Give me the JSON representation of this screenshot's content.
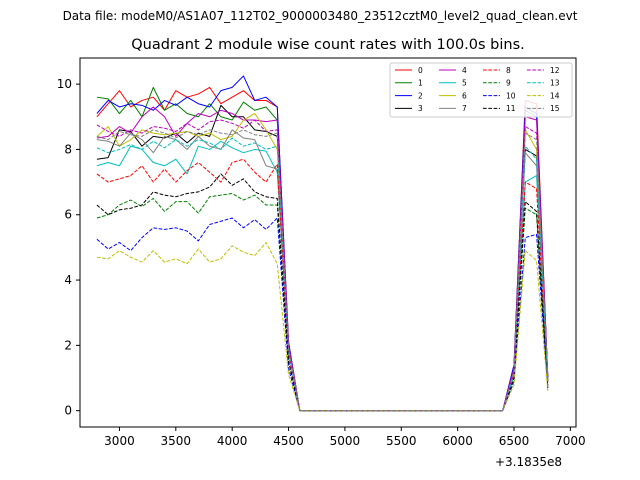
{
  "header": {
    "suptitle": "Data file: modeM0/AS1A07_112T02_9000003480_23512cztM0_level2_quad_clean.evt"
  },
  "chart_data": {
    "type": "line",
    "title": "Quadrant 2 module wise count rates with 100.0s bins.",
    "xlabel": "",
    "ylabel": "",
    "x_offset_label": "+3.1835e8",
    "xlim": [
      2650,
      7050
    ],
    "ylim": [
      -0.5,
      10.8
    ],
    "xticks": [
      3000,
      3500,
      4000,
      4500,
      5000,
      5500,
      6000,
      6500,
      7000
    ],
    "yticks": [
      0,
      2,
      4,
      6,
      8,
      10
    ],
    "grid": false,
    "legend_position": "top-right",
    "x": [
      2800,
      2900,
      3000,
      3100,
      3200,
      3300,
      3400,
      3500,
      3600,
      3700,
      3800,
      3900,
      4000,
      4100,
      4200,
      4300,
      4400,
      4500,
      4600,
      4700,
      4800,
      4900,
      5000,
      5100,
      5200,
      5300,
      5400,
      5500,
      5600,
      5700,
      5800,
      5900,
      6000,
      6100,
      6200,
      6300,
      6400,
      6500,
      6600,
      6700,
      6800
    ],
    "series": [
      {
        "name": "0",
        "color": "#ff0000",
        "dash": "solid",
        "values": [
          9.0,
          9.4,
          9.8,
          9.3,
          9.5,
          9.6,
          9.2,
          9.8,
          9.6,
          9.7,
          9.9,
          9.4,
          9.6,
          9.8,
          9.5,
          9.5,
          9.3,
          2.1,
          0.0,
          0,
          0,
          0,
          0,
          0,
          0,
          0,
          0,
          0,
          0,
          0,
          0,
          0,
          0,
          0,
          0,
          0,
          0,
          1.4,
          9.5,
          9.4,
          1.0
        ]
      },
      {
        "name": "1",
        "color": "#008000",
        "dash": "solid",
        "values": [
          9.6,
          9.55,
          9.1,
          9.5,
          9.0,
          9.9,
          9.2,
          9.4,
          9.1,
          9.0,
          9.4,
          9.0,
          8.9,
          9.45,
          9.2,
          9.3,
          8.9,
          2.0,
          0.0,
          0,
          0,
          0,
          0,
          0,
          0,
          0,
          0,
          0,
          0,
          0,
          0,
          0,
          0,
          0,
          0,
          0,
          0,
          1.3,
          9.2,
          9.0,
          1.0
        ]
      },
      {
        "name": "2",
        "color": "#0000ff",
        "dash": "solid",
        "values": [
          9.1,
          9.5,
          9.3,
          9.4,
          9.35,
          9.2,
          9.5,
          9.35,
          9.6,
          9.4,
          9.3,
          9.8,
          9.9,
          10.25,
          9.5,
          9.6,
          9.3,
          2.1,
          0.0,
          0,
          0,
          0,
          0,
          0,
          0,
          0,
          0,
          0,
          0,
          0,
          0,
          0,
          0,
          0,
          0,
          0,
          0,
          1.4,
          9.3,
          9.1,
          1.0
        ]
      },
      {
        "name": "3",
        "color": "#000000",
        "dash": "solid",
        "values": [
          7.7,
          7.75,
          8.6,
          8.55,
          8.1,
          8.4,
          8.35,
          8.5,
          8.2,
          8.5,
          8.4,
          9.35,
          9.0,
          9.0,
          8.6,
          8.55,
          8.4,
          1.9,
          0.0,
          0,
          0,
          0,
          0,
          0,
          0,
          0,
          0,
          0,
          0,
          0,
          0,
          0,
          0,
          0,
          0,
          0,
          0,
          1.2,
          8.0,
          7.8,
          0.9
        ]
      },
      {
        "name": "4",
        "color": "#bf00bf",
        "dash": "solid",
        "values": [
          8.35,
          8.4,
          8.7,
          8.5,
          9.0,
          9.3,
          9.0,
          8.4,
          8.8,
          9.1,
          9.0,
          9.2,
          9.1,
          8.9,
          8.9,
          8.85,
          8.9,
          2.0,
          0.0,
          0,
          0,
          0,
          0,
          0,
          0,
          0,
          0,
          0,
          0,
          0,
          0,
          0,
          0,
          0,
          0,
          0,
          0,
          1.3,
          9.0,
          8.9,
          1.0
        ]
      },
      {
        "name": "5",
        "color": "#00bfbf",
        "dash": "solid",
        "values": [
          7.5,
          7.6,
          7.5,
          8.1,
          8.0,
          7.6,
          7.5,
          7.7,
          7.25,
          8.1,
          8.0,
          8.25,
          8.05,
          7.9,
          8.0,
          7.95,
          7.3,
          1.8,
          0.0,
          0,
          0,
          0,
          0,
          0,
          0,
          0,
          0,
          0,
          0,
          0,
          0,
          0,
          0,
          0,
          0,
          0,
          0,
          1.1,
          7.0,
          7.2,
          0.9
        ]
      },
      {
        "name": "6",
        "color": "#bfbf00",
        "dash": "solid",
        "values": [
          8.4,
          8.7,
          8.1,
          8.3,
          8.6,
          8.5,
          8.45,
          8.5,
          8.55,
          8.4,
          8.5,
          8.3,
          8.4,
          8.9,
          9.1,
          8.6,
          8.0,
          1.9,
          0.0,
          0,
          0,
          0,
          0,
          0,
          0,
          0,
          0,
          0,
          0,
          0,
          0,
          0,
          0,
          0,
          0,
          0,
          0,
          1.2,
          8.6,
          8.0,
          0.9
        ]
      },
      {
        "name": "7",
        "color": "#808080",
        "dash": "solid",
        "values": [
          8.3,
          8.25,
          8.1,
          8.5,
          8.3,
          7.9,
          8.4,
          8.3,
          8.0,
          8.4,
          8.1,
          8.0,
          8.6,
          8.35,
          8.3,
          7.5,
          7.4,
          1.8,
          0.0,
          0,
          0,
          0,
          0,
          0,
          0,
          0,
          0,
          0,
          0,
          0,
          0,
          0,
          0,
          0,
          0,
          0,
          0,
          1.2,
          7.9,
          7.5,
          0.9
        ]
      },
      {
        "name": "8",
        "color": "#ff0000",
        "dash": "dashed",
        "values": [
          7.25,
          7.0,
          7.1,
          7.2,
          7.5,
          7.0,
          7.4,
          7.0,
          7.35,
          7.6,
          7.3,
          7.0,
          7.6,
          7.7,
          7.3,
          7.0,
          7.55,
          1.7,
          0.0,
          0,
          0,
          0,
          0,
          0,
          0,
          0,
          0,
          0,
          0,
          0,
          0,
          0,
          0,
          0,
          0,
          0,
          0,
          1.1,
          7.0,
          6.8,
          0.8
        ]
      },
      {
        "name": "9",
        "color": "#008000",
        "dash": "dashed",
        "values": [
          5.9,
          6.0,
          6.3,
          6.45,
          6.25,
          6.5,
          6.1,
          6.4,
          6.4,
          6.05,
          6.55,
          6.6,
          6.65,
          6.45,
          6.6,
          6.3,
          6.3,
          1.5,
          0.0,
          0,
          0,
          0,
          0,
          0,
          0,
          0,
          0,
          0,
          0,
          0,
          0,
          0,
          0,
          0,
          0,
          0,
          0,
          1.0,
          6.2,
          6.0,
          0.7
        ]
      },
      {
        "name": "10",
        "color": "#0000ff",
        "dash": "dashed",
        "values": [
          5.25,
          4.95,
          5.15,
          4.9,
          5.3,
          5.6,
          5.55,
          5.6,
          5.5,
          5.2,
          5.7,
          5.8,
          5.9,
          5.6,
          5.85,
          5.55,
          5.9,
          1.3,
          0.0,
          0,
          0,
          0,
          0,
          0,
          0,
          0,
          0,
          0,
          0,
          0,
          0,
          0,
          0,
          0,
          0,
          0,
          0,
          0.9,
          5.3,
          5.4,
          0.7
        ]
      },
      {
        "name": "11",
        "color": "#000000",
        "dash": "dashed",
        "values": [
          6.3,
          6.0,
          6.15,
          6.2,
          6.3,
          6.7,
          6.6,
          6.55,
          6.65,
          6.7,
          6.85,
          7.25,
          6.9,
          7.1,
          6.7,
          6.55,
          6.5,
          1.5,
          0.0,
          0,
          0,
          0,
          0,
          0,
          0,
          0,
          0,
          0,
          0,
          0,
          0,
          0,
          0,
          0,
          0,
          0,
          0,
          1.0,
          6.4,
          6.1,
          0.7
        ]
      },
      {
        "name": "12",
        "color": "#bf00bf",
        "dash": "dashed",
        "values": [
          8.75,
          8.55,
          8.4,
          8.6,
          8.5,
          8.7,
          8.65,
          8.55,
          8.8,
          8.6,
          8.85,
          8.9,
          8.8,
          8.65,
          8.9,
          8.55,
          8.6,
          1.9,
          0.0,
          0,
          0,
          0,
          0,
          0,
          0,
          0,
          0,
          0,
          0,
          0,
          0,
          0,
          0,
          0,
          0,
          0,
          0,
          1.2,
          8.7,
          8.5,
          0.9
        ]
      },
      {
        "name": "13",
        "color": "#00bfbf",
        "dash": "dashed",
        "values": [
          8.05,
          7.9,
          8.0,
          8.15,
          8.0,
          8.25,
          8.05,
          8.3,
          8.1,
          8.3,
          8.2,
          8.0,
          8.35,
          8.1,
          8.2,
          8.0,
          8.1,
          1.8,
          0.0,
          0,
          0,
          0,
          0,
          0,
          0,
          0,
          0,
          0,
          0,
          0,
          0,
          0,
          0,
          0,
          0,
          0,
          0,
          1.1,
          8.1,
          7.7,
          0.9
        ]
      },
      {
        "name": "14",
        "color": "#bfbf00",
        "dash": "dashed",
        "values": [
          4.7,
          4.65,
          4.9,
          4.7,
          4.55,
          4.9,
          4.55,
          4.65,
          4.5,
          4.95,
          4.55,
          4.65,
          5.05,
          4.85,
          4.75,
          5.15,
          4.5,
          1.1,
          0.0,
          0,
          0,
          0,
          0,
          0,
          0,
          0,
          0,
          0,
          0,
          0,
          0,
          0,
          0,
          0,
          0,
          0,
          0,
          0.8,
          4.9,
          4.6,
          0.6
        ]
      },
      {
        "name": "15",
        "color": "#808080",
        "dash": "dashed",
        "values": [
          8.4,
          8.3,
          8.55,
          8.45,
          8.4,
          8.6,
          8.5,
          8.35,
          8.55,
          8.45,
          8.6,
          8.5,
          8.45,
          8.6,
          8.45,
          8.4,
          8.5,
          1.9,
          0.0,
          0,
          0,
          0,
          0,
          0,
          0,
          0,
          0,
          0,
          0,
          0,
          0,
          0,
          0,
          0,
          0,
          0,
          0,
          1.2,
          8.5,
          8.3,
          0.9
        ]
      }
    ]
  }
}
